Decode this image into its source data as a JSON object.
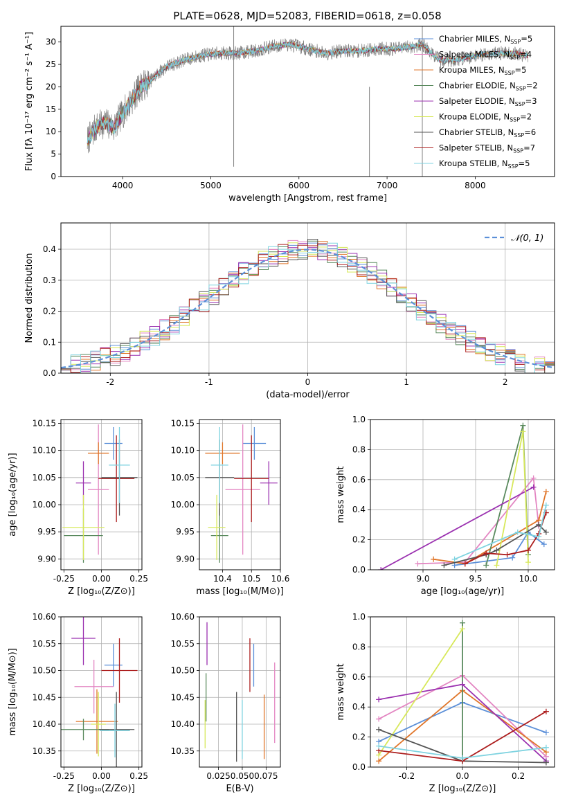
{
  "title": "PLATE=0628, MJD=52083, FIBERID=0618, z=0.058",
  "colors": {
    "Chabrier MILES": "#5b8fd8",
    "Salpeter MILES": "#e386c2",
    "Kroupa MILES": "#e0762a",
    "Chabrier ELODIE": "#5a8a5e",
    "Salpeter ELODIE": "#9b31b0",
    "Kroupa ELODIE": "#d7e85a",
    "Chabrier STELIB": "#555555",
    "Salpeter STELIB": "#ad1f1f",
    "Kroupa STELIB": "#7fd3e0"
  },
  "chart_data": [
    {
      "id": "spectrum",
      "type": "line",
      "xlabel": "wavelength [Angstrom, rest frame]",
      "ylabel": "Flux [fλ 10⁻¹⁷ erg cm⁻² s⁻¹ A⁻¹]",
      "xlim": [
        3300,
        8900
      ],
      "ylim": [
        0,
        33.5
      ],
      "xticks": [
        4000,
        5000,
        6000,
        7000,
        8000
      ],
      "yticks": [
        0,
        5,
        10,
        15,
        20,
        25,
        30
      ],
      "legend_position": "right",
      "legend": [
        {
          "name": "Chabrier MILES",
          "nssp": "5"
        },
        {
          "name": "Salpeter MILES",
          "nssp": "4"
        },
        {
          "name": "Kroupa MILES",
          "nssp": "5"
        },
        {
          "name": "Chabrier ELODIE",
          "nssp": "2"
        },
        {
          "name": "Salpeter ELODIE",
          "nssp": "3"
        },
        {
          "name": "Kroupa ELODIE",
          "nssp": "2"
        },
        {
          "name": "Chabrier STELIB",
          "nssp": "6"
        },
        {
          "name": "Salpeter STELIB",
          "nssp": "7"
        },
        {
          "name": "Kroupa STELIB",
          "nssp": "5"
        }
      ],
      "continuum": [
        [
          3600,
          8
        ],
        [
          3700,
          11
        ],
        [
          3800,
          12
        ],
        [
          3900,
          11
        ],
        [
          4000,
          14
        ],
        [
          4100,
          17
        ],
        [
          4200,
          20
        ],
        [
          4300,
          21
        ],
        [
          4400,
          23
        ],
        [
          4500,
          24.5
        ],
        [
          4700,
          26
        ],
        [
          4900,
          27
        ],
        [
          5100,
          27.5
        ],
        [
          5300,
          27.5
        ],
        [
          5500,
          28
        ],
        [
          5700,
          29
        ],
        [
          5900,
          29.5
        ],
        [
          6100,
          28.5
        ],
        [
          6300,
          27.5
        ],
        [
          6500,
          28
        ],
        [
          6700,
          28
        ],
        [
          6900,
          28.5
        ],
        [
          7100,
          28.5
        ],
        [
          7300,
          29
        ],
        [
          7400,
          29.5
        ],
        [
          7500,
          27.5
        ],
        [
          7600,
          26
        ],
        [
          7800,
          26
        ],
        [
          8000,
          27
        ],
        [
          8200,
          27.5
        ],
        [
          8400,
          27.5
        ],
        [
          8600,
          27
        ]
      ],
      "spikes": [
        {
          "x": 5260,
          "ymin": 2.2,
          "ymax": 33.5
        },
        {
          "x": 6800,
          "ymin": 0,
          "ymax": 20
        },
        {
          "x": 7400,
          "ymin": 0,
          "ymax": 33.5
        }
      ]
    },
    {
      "id": "residuals",
      "type": "step",
      "xlabel": "(data-model)/error",
      "ylabel": "Normed distribution",
      "xlim": [
        -2.5,
        2.5
      ],
      "ylim": [
        0,
        0.485
      ],
      "xticks": [
        -2,
        -1,
        0,
        1,
        2
      ],
      "yticks": [
        0.0,
        0.1,
        0.2,
        0.3,
        0.4
      ],
      "legend_label": "𝒩(0, 1)",
      "gaussian": {
        "mu": 0,
        "sigma": 1
      }
    },
    {
      "id": "age-vs-Z",
      "type": "errorbar",
      "xlabel": "Z [log₁₀(Z/Z⊙)]",
      "ylabel": "age  [log₁₀(age/yr)]",
      "xlim": [
        -0.27,
        0.27
      ],
      "ylim": [
        9.88,
        10.157
      ],
      "xticks": [
        -0.25,
        0.0,
        0.25
      ],
      "yticks": [
        9.9,
        9.95,
        10.0,
        10.05,
        10.1,
        10.15
      ],
      "points": [
        {
          "series": "Chabrier MILES",
          "x": 0.08,
          "xerr": 0.06,
          "y": 10.113,
          "yerr": 0.03
        },
        {
          "series": "Salpeter MILES",
          "x": -0.02,
          "xerr": 0.07,
          "y": 10.028,
          "yerr": 0.12
        },
        {
          "series": "Kroupa MILES",
          "x": -0.02,
          "xerr": 0.07,
          "y": 10.095,
          "yerr": 0.02
        },
        {
          "series": "Chabrier ELODIE",
          "x": -0.12,
          "xerr": 0.13,
          "y": 9.943,
          "yerr": 0.05
        },
        {
          "series": "Salpeter ELODIE",
          "x": -0.12,
          "xerr": 0.05,
          "y": 10.04,
          "yerr": 0.04
        },
        {
          "series": "Kroupa ELODIE",
          "x": -0.12,
          "xerr": 0.14,
          "y": 9.958,
          "yerr": 0.06
        },
        {
          "series": "Chabrier STELIB",
          "x": 0.12,
          "xerr": 0.12,
          "y": 10.05,
          "yerr": 0.07
        },
        {
          "series": "Salpeter STELIB",
          "x": 0.1,
          "xerr": 0.12,
          "y": 10.048,
          "yerr": 0.08
        },
        {
          "series": "Kroupa STELIB",
          "x": 0.12,
          "xerr": 0.07,
          "y": 10.073,
          "yerr": 0.07
        }
      ]
    },
    {
      "id": "age-vs-mass",
      "type": "errorbar",
      "xlabel": "mass [log₁₀(M/M⊙)]",
      "ylabel": "",
      "xlim": [
        10.32,
        10.6
      ],
      "ylim": [
        9.88,
        10.157
      ],
      "xticks": [
        10.4,
        10.5,
        10.6
      ],
      "yticks": [
        9.9,
        9.95,
        10.0,
        10.05,
        10.1,
        10.15
      ],
      "points": [
        {
          "series": "Chabrier MILES",
          "x": 10.51,
          "xerr": 0.04,
          "y": 10.113,
          "yerr": 0.03
        },
        {
          "series": "Salpeter MILES",
          "x": 10.47,
          "xerr": 0.06,
          "y": 10.028,
          "yerr": 0.12
        },
        {
          "series": "Kroupa MILES",
          "x": 10.4,
          "xerr": 0.06,
          "y": 10.095,
          "yerr": 0.02
        },
        {
          "series": "Chabrier ELODIE",
          "x": 10.39,
          "xerr": 0.03,
          "y": 9.943,
          "yerr": 0.05
        },
        {
          "series": "Salpeter ELODIE",
          "x": 10.56,
          "xerr": 0.03,
          "y": 10.04,
          "yerr": 0.04
        },
        {
          "series": "Kroupa ELODIE",
          "x": 10.38,
          "xerr": 0.03,
          "y": 9.958,
          "yerr": 0.06
        },
        {
          "series": "Chabrier STELIB",
          "x": 10.39,
          "xerr": 0.05,
          "y": 10.05,
          "yerr": 0.07
        },
        {
          "series": "Salpeter STELIB",
          "x": 10.5,
          "xerr": 0.06,
          "y": 10.048,
          "yerr": 0.08
        },
        {
          "series": "Kroupa STELIB",
          "x": 10.39,
          "xerr": 0.03,
          "y": 10.073,
          "yerr": 0.07
        }
      ]
    },
    {
      "id": "mass-weight-vs-age",
      "type": "line",
      "xlabel": "age  [log₁₀(age/yr)]",
      "ylabel": "mass weight",
      "xlim": [
        8.5,
        10.25
      ],
      "ylim": [
        0,
        1.0
      ],
      "xticks": [
        9.0,
        9.5,
        10.0
      ],
      "yticks": [
        0.0,
        0.2,
        0.4,
        0.6,
        0.8,
        1.0
      ],
      "series": [
        {
          "name": "Chabrier MILES",
          "x": [
            9.3,
            9.85,
            10.0,
            10.15
          ],
          "y": [
            0.03,
            0.08,
            0.25,
            0.17
          ]
        },
        {
          "name": "Salpeter MILES",
          "x": [
            8.95,
            9.4,
            10.05,
            10.1
          ],
          "y": [
            0.04,
            0.05,
            0.61,
            0.29
          ]
        },
        {
          "name": "Kroupa MILES",
          "x": [
            9.1,
            9.4,
            10.1,
            10.17
          ],
          "y": [
            0.07,
            0.04,
            0.33,
            0.52
          ]
        },
        {
          "name": "Chabrier ELODIE",
          "x": [
            9.6,
            9.95,
            10.0
          ],
          "y": [
            0.03,
            0.96,
            0.1
          ]
        },
        {
          "name": "Salpeter ELODIE",
          "x": [
            8.6,
            10.05
          ],
          "y": [
            0.0,
            0.55
          ]
        },
        {
          "name": "Kroupa ELODIE",
          "x": [
            9.7,
            9.95,
            10.0
          ],
          "y": [
            0.03,
            0.92,
            0.05
          ]
        },
        {
          "name": "Chabrier STELIB",
          "x": [
            9.2,
            9.6,
            9.7,
            10.1,
            10.17
          ],
          "y": [
            0.03,
            0.1,
            0.13,
            0.3,
            0.25
          ]
        },
        {
          "name": "Salpeter STELIB",
          "x": [
            9.4,
            9.6,
            9.8,
            10.0,
            10.1,
            10.17
          ],
          "y": [
            0.04,
            0.11,
            0.1,
            0.13,
            0.24,
            0.38
          ]
        },
        {
          "name": "Kroupa STELIB",
          "x": [
            9.3,
            9.9,
            10.1,
            10.17
          ],
          "y": [
            0.07,
            0.25,
            0.22,
            0.43
          ]
        }
      ]
    },
    {
      "id": "mass-vs-Z",
      "type": "errorbar",
      "xlabel": "Z [log₁₀(Z/Z⊙)]",
      "ylabel": "mass [log₁₀(M/M⊙)]",
      "xlim": [
        -0.27,
        0.27
      ],
      "ylim": [
        10.32,
        10.6
      ],
      "xticks": [
        -0.25,
        0.0,
        0.25
      ],
      "yticks": [
        10.35,
        10.4,
        10.45,
        10.5,
        10.55,
        10.6
      ],
      "points": [
        {
          "series": "Chabrier MILES",
          "x": 0.08,
          "xerr": 0.06,
          "y": 10.51,
          "yerr": 0.04
        },
        {
          "series": "Salpeter MILES",
          "x": -0.05,
          "xerr": 0.13,
          "y": 10.47,
          "yerr": 0.05
        },
        {
          "series": "Kroupa MILES",
          "x": -0.03,
          "xerr": 0.14,
          "y": 10.405,
          "yerr": 0.06
        },
        {
          "series": "Chabrier ELODIE",
          "x": -0.12,
          "xerr": 0.17,
          "y": 10.39,
          "yerr": 0.02
        },
        {
          "series": "Salpeter ELODIE",
          "x": -0.12,
          "xerr": 0.08,
          "y": 10.56,
          "yerr": 0.05
        },
        {
          "series": "Kroupa ELODIE",
          "x": -0.02,
          "xerr": 0.05,
          "y": 10.4,
          "yerr": 0.06
        },
        {
          "series": "Chabrier STELIB",
          "x": 0.1,
          "xerr": 0.12,
          "y": 10.39,
          "yerr": 0.07
        },
        {
          "series": "Salpeter STELIB",
          "x": 0.12,
          "xerr": 0.12,
          "y": 10.5,
          "yerr": 0.06
        },
        {
          "series": "Kroupa STELIB",
          "x": 0.09,
          "xerr": 0.1,
          "y": 10.388,
          "yerr": 0.05
        }
      ]
    },
    {
      "id": "mass-vs-EBV",
      "type": "errorbar",
      "xlabel": "E(B-V)",
      "ylabel": "",
      "xlim": [
        0.005,
        0.09
      ],
      "ylim": [
        10.32,
        10.6
      ],
      "xticks": [
        0.025,
        0.05,
        0.075
      ],
      "xticklabels": [
        "0.025",
        "0.050",
        "0.075"
      ],
      "yticks": [
        10.35,
        10.4,
        10.45,
        10.5,
        10.55,
        10.6
      ],
      "points": [
        {
          "series": "Chabrier MILES",
          "x": 0.062,
          "xerr": 0,
          "y": 10.51,
          "yerr": 0.04
        },
        {
          "series": "Salpeter MILES",
          "x": 0.084,
          "xerr": 0,
          "y": 10.44,
          "yerr": 0.075
        },
        {
          "series": "Kroupa MILES",
          "x": 0.073,
          "xerr": 0,
          "y": 10.395,
          "yerr": 0.06
        },
        {
          "series": "Chabrier ELODIE",
          "x": 0.012,
          "xerr": 0,
          "y": 10.45,
          "yerr": 0.045
        },
        {
          "series": "Salpeter ELODIE",
          "x": 0.013,
          "xerr": 0,
          "y": 10.55,
          "yerr": 0.04
        },
        {
          "series": "Kroupa ELODIE",
          "x": 0.011,
          "xerr": 0,
          "y": 10.4,
          "yerr": 0.045
        },
        {
          "series": "Chabrier STELIB",
          "x": 0.044,
          "xerr": 0,
          "y": 10.395,
          "yerr": 0.065
        },
        {
          "series": "Salpeter STELIB",
          "x": 0.058,
          "xerr": 0,
          "y": 10.51,
          "yerr": 0.05
        },
        {
          "series": "Kroupa STELIB",
          "x": 0.05,
          "xerr": 0,
          "y": 10.39,
          "yerr": 0.055
        }
      ]
    },
    {
      "id": "mass-weight-vs-Z",
      "type": "line",
      "xlabel": "Z [log₁₀(Z/Z⊙)]",
      "ylabel": "mass weight",
      "xlim": [
        -0.33,
        0.33
      ],
      "ylim": [
        0,
        1.0
      ],
      "xticks": [
        -0.2,
        0.0,
        0.2
      ],
      "yticks": [
        0.0,
        0.2,
        0.4,
        0.6,
        0.8,
        1.0
      ],
      "series": [
        {
          "name": "Chabrier MILES",
          "x": [
            -0.3,
            0.0,
            0.3
          ],
          "y": [
            0.17,
            0.43,
            0.23
          ]
        },
        {
          "name": "Salpeter MILES",
          "x": [
            -0.3,
            0.0,
            0.3
          ],
          "y": [
            0.32,
            0.61,
            0.07
          ]
        },
        {
          "name": "Kroupa MILES",
          "x": [
            -0.3,
            0.0,
            0.3
          ],
          "y": [
            0.04,
            0.51,
            0.1
          ]
        },
        {
          "name": "Chabrier ELODIE",
          "x": [
            0.0,
            0.0
          ],
          "y": [
            0.96,
            0.04
          ]
        },
        {
          "name": "Salpeter ELODIE",
          "x": [
            -0.3,
            0.0,
            0.3
          ],
          "y": [
            0.45,
            0.55,
            0.04
          ]
        },
        {
          "name": "Kroupa ELODIE",
          "x": [
            -0.3,
            0.0
          ],
          "y": [
            0.08,
            0.92
          ]
        },
        {
          "name": "Chabrier STELIB",
          "x": [
            -0.3,
            0.0,
            0.3
          ],
          "y": [
            0.25,
            0.04,
            0.03
          ]
        },
        {
          "name": "Salpeter STELIB",
          "x": [
            -0.3,
            0.0,
            0.3
          ],
          "y": [
            0.11,
            0.04,
            0.37
          ]
        },
        {
          "name": "Kroupa STELIB",
          "x": [
            -0.3,
            0.0,
            0.3
          ],
          "y": [
            0.14,
            0.06,
            0.13
          ]
        }
      ]
    }
  ]
}
